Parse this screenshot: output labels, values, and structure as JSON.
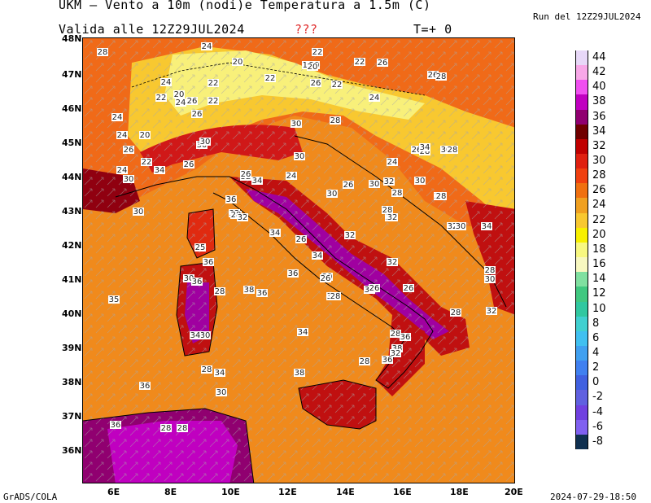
{
  "header": {
    "title": "UKM – Vento a 10m (nodi)e Temperatura a 1.5m (C)",
    "run": "Run del 12Z29JUL2024",
    "valid": "Valida alle 12Z29JUL2024",
    "flag": "???",
    "step": "T=+ 0"
  },
  "footer": {
    "credit": "GrADS/COLA",
    "timestamp": "2024-07-29-18:50"
  },
  "axes": {
    "lat_labels": [
      "48N",
      "47N",
      "46N",
      "45N",
      "44N",
      "43N",
      "42N",
      "41N",
      "40N",
      "39N",
      "38N",
      "37N",
      "36N"
    ],
    "lon_labels": [
      "6E",
      "8E",
      "10E",
      "12E",
      "14E",
      "16E",
      "18E",
      "20E"
    ]
  },
  "colorbar": {
    "levels": [
      "44",
      "42",
      "40",
      "38",
      "36",
      "34",
      "32",
      "30",
      "28",
      "26",
      "24",
      "22",
      "20",
      "18",
      "16",
      "14",
      "12",
      "10",
      "8",
      "6",
      "4",
      "2",
      "0",
      "-2",
      "-4",
      "-6",
      "-8"
    ],
    "colors": [
      "#e8d8f8",
      "#f8a8e8",
      "#f050f0",
      "#c000c0",
      "#900070",
      "#700000",
      "#c00000",
      "#e02010",
      "#f04010",
      "#f07010",
      "#f0a020",
      "#f8c830",
      "#f8f000",
      "#f8f880",
      "#f8f8c0",
      "#80e0a0",
      "#40c880",
      "#30c8a0",
      "#40d0d0",
      "#40c0f0",
      "#40a0f0",
      "#4080f0",
      "#4060e0",
      "#6060e0",
      "#7040e0",
      "#8060f0",
      "#103050"
    ]
  },
  "isotherm_labels": [
    "28",
    "24",
    "20",
    "18",
    "20",
    "22",
    "20",
    "22",
    "26",
    "26",
    "28",
    "24",
    "22",
    "22",
    "26",
    "22",
    "24",
    "22",
    "20",
    "24",
    "26",
    "22",
    "24",
    "26",
    "28",
    "30",
    "24",
    "20",
    "30",
    "26",
    "22",
    "30",
    "26",
    "24",
    "26",
    "28",
    "30",
    "28",
    "24",
    "30",
    "34",
    "30",
    "34",
    "32",
    "26",
    "24",
    "30",
    "32",
    "30",
    "36",
    "26",
    "32",
    "28",
    "30",
    "28",
    "34",
    "30",
    "36",
    "32",
    "28",
    "30",
    "32",
    "28",
    "32",
    "30",
    "34",
    "34",
    "32",
    "26",
    "25",
    "36",
    "28",
    "32",
    "30",
    "36",
    "30",
    "28",
    "38",
    "36",
    "36",
    "34",
    "30",
    "36",
    "28",
    "26",
    "34",
    "26",
    "26",
    "28",
    "32",
    "35",
    "34",
    "30",
    "34",
    "28",
    "36",
    "38",
    "32",
    "36",
    "28",
    "36",
    "28",
    "38",
    "36",
    "30",
    "34",
    "28",
    "28"
  ]
}
